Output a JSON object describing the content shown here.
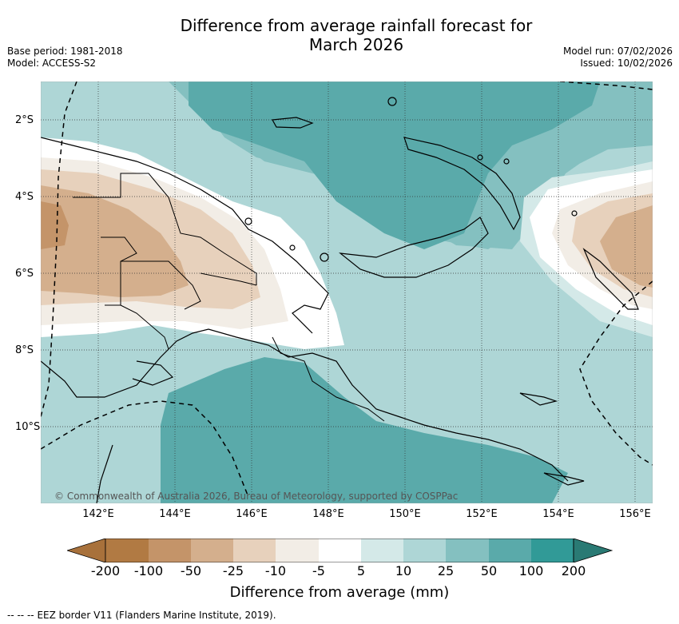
{
  "title_line1": "Difference from average rainfall forecast for",
  "title_line2": "March 2026",
  "base_period": "Base period: 1981-2018",
  "model": "Model: ACCESS-S2",
  "model_run": "Model run: 07/02/2026",
  "issued": "Issued: 10/02/2026",
  "copyright": "© Commonwealth of Australia 2026, Bureau of Meteorology, supported by COSPPac",
  "lat_labels": [
    "2°S",
    "4°S",
    "6°S",
    "8°S",
    "10°S"
  ],
  "lon_labels": [
    "142°E",
    "144°E",
    "146°E",
    "148°E",
    "150°E",
    "152°E",
    "154°E",
    "156°E"
  ],
  "colorbar": {
    "ticks": [
      "-200",
      "-100",
      "-50",
      "-25",
      "-10",
      "-5",
      "5",
      "10",
      "25",
      "50",
      "100",
      "200"
    ],
    "colors": [
      "#a8713b",
      "#b17a43",
      "#c49469",
      "#d4af8d",
      "#e7d1bc",
      "#f2ede6",
      "#ffffff",
      "#d4e9e8",
      "#aed6d6",
      "#84c0c0",
      "#5aaaaa",
      "#319a97",
      "#2a7a74"
    ],
    "title": "Difference from average (mm)"
  },
  "legend_line_symbol": "-- -- --",
  "legend_text": "EEZ border V11 (Flanders Marine Institute, 2019)."
}
